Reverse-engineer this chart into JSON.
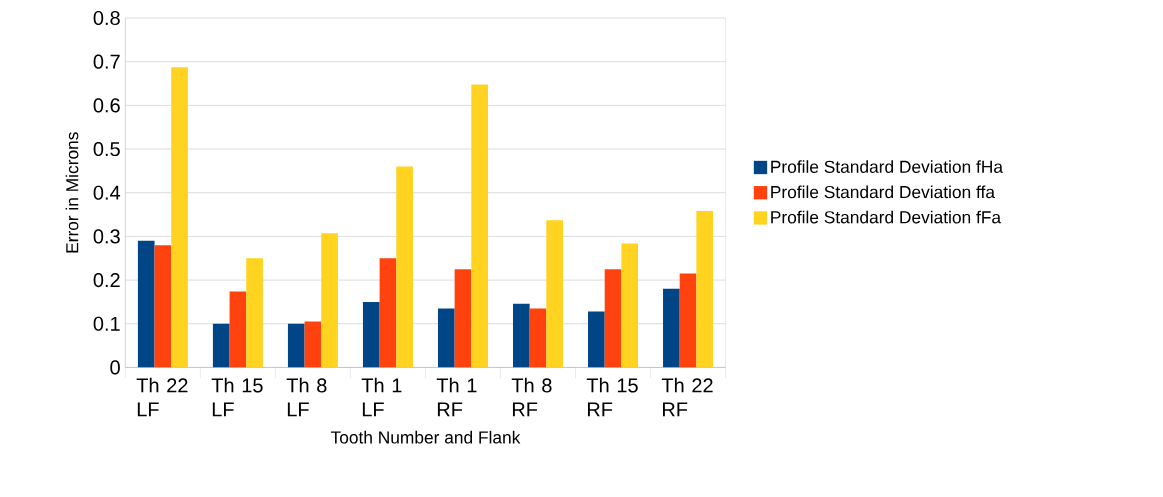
{
  "chart_data": {
    "type": "bar",
    "xlabel": "Tooth Number and Flank",
    "ylabel": "Error in Microns",
    "categories": [
      "Th 22 LF",
      "Th 15 LF",
      "Th 8 LF",
      "Th 1 LF",
      "Th 1 RF",
      "Th 8 RF",
      "Th 15 RF",
      "Th 22 RF"
    ],
    "series": [
      {
        "name": "Profile Standard Deviation fHa",
        "color": "#004586",
        "values": [
          0.29,
          0.1,
          0.1,
          0.15,
          0.135,
          0.146,
          0.128,
          0.18
        ]
      },
      {
        "name": "Profile Standard Deviation ffa",
        "color": "#ff420e",
        "values": [
          0.28,
          0.174,
          0.105,
          0.25,
          0.225,
          0.135,
          0.225,
          0.215
        ]
      },
      {
        "name": "Profile Standard Deviation fFa",
        "color": "#ffd320",
        "values": [
          0.687,
          0.25,
          0.307,
          0.46,
          0.648,
          0.337,
          0.284,
          0.358
        ]
      }
    ],
    "ylim": [
      0,
      0.8
    ],
    "yticks": [
      0,
      0.1,
      0.2,
      0.3,
      0.4,
      0.5,
      0.6,
      0.7,
      0.8
    ],
    "grid": "y",
    "legend": "right"
  }
}
